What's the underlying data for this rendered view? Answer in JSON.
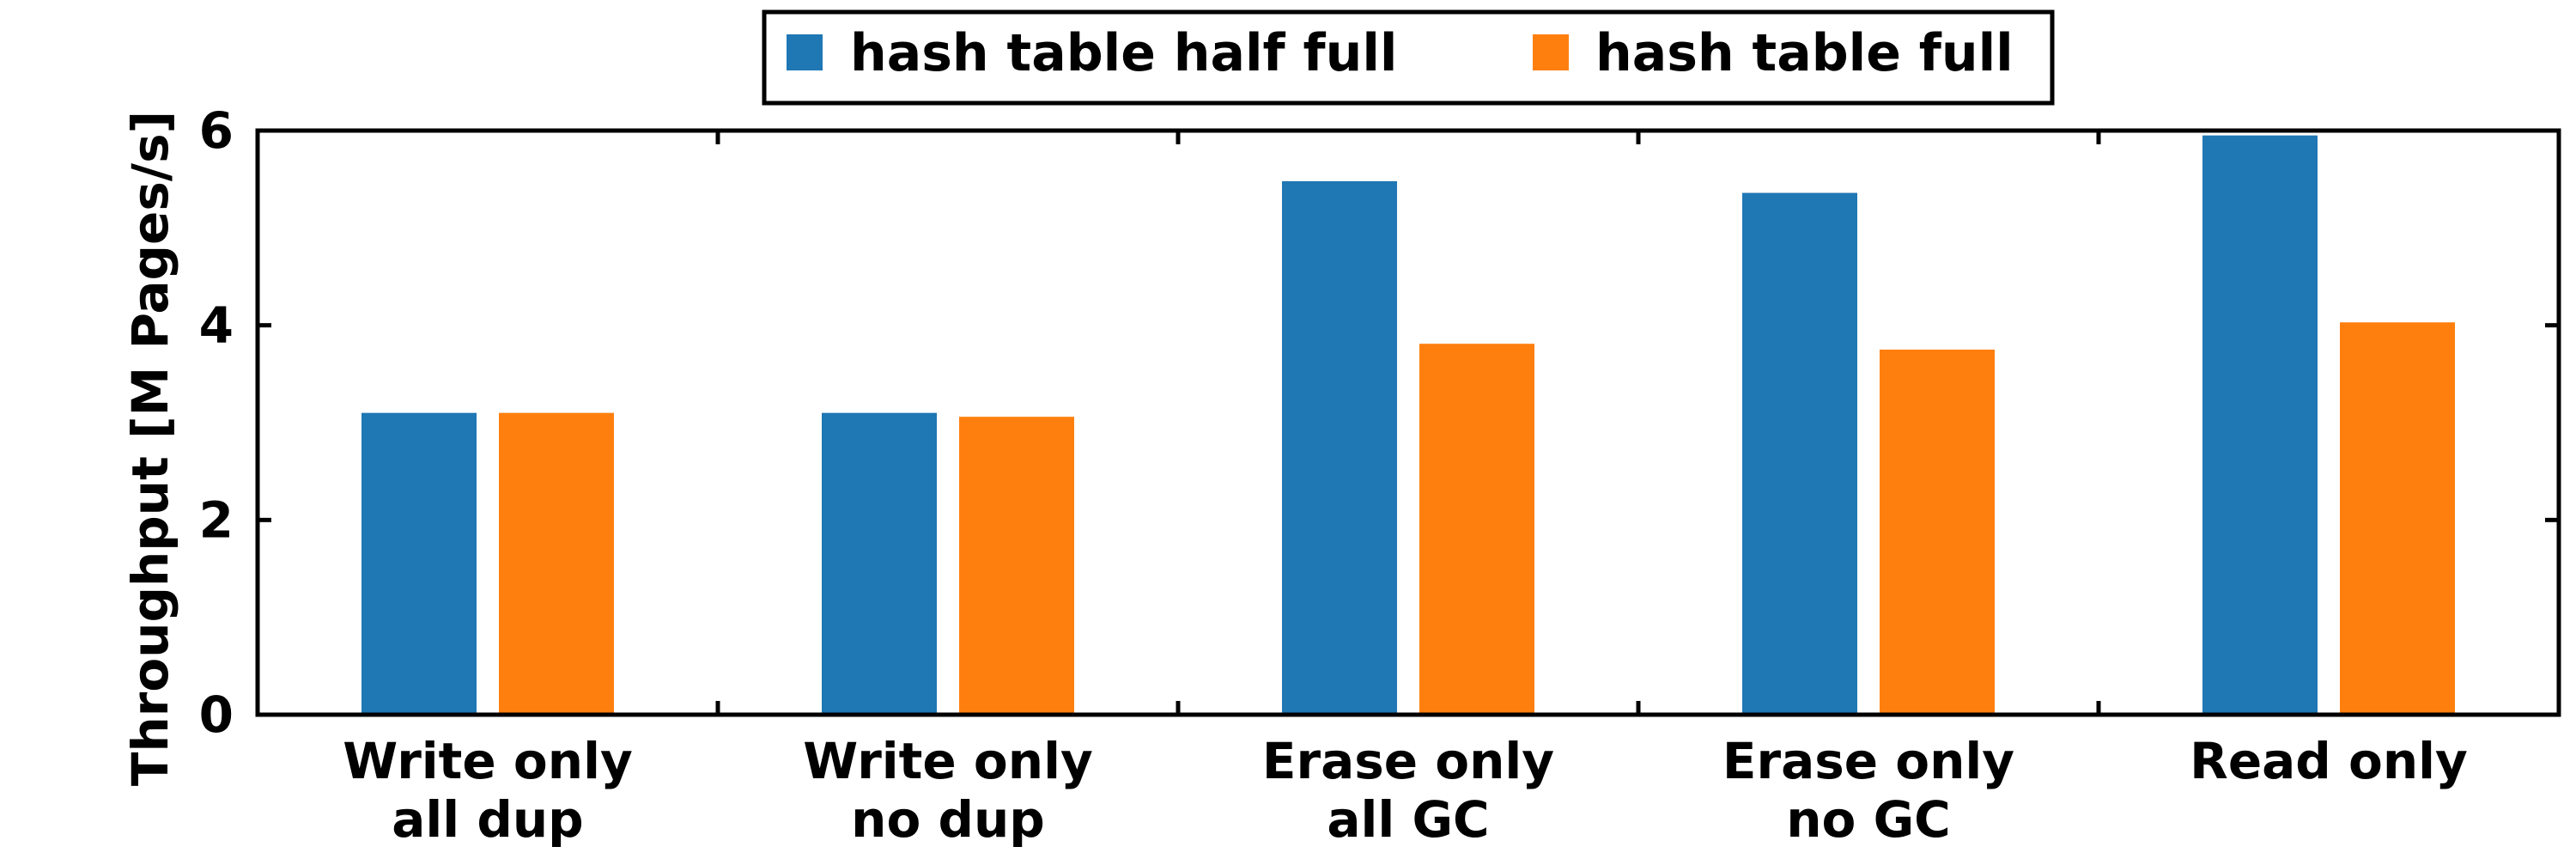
{
  "chart_data": {
    "type": "bar",
    "title": "",
    "xlabel": "",
    "ylabel": "Throughput [M Pages/s]",
    "ylim": [
      0,
      6
    ],
    "yticks": [
      0,
      2,
      4,
      6
    ],
    "grid": false,
    "legend_position": "top-center",
    "categories": [
      [
        "Write only",
        "all dup"
      ],
      [
        "Write only",
        "no dup"
      ],
      [
        "Erase only",
        "all GC"
      ],
      [
        "Erase only",
        "no GC"
      ],
      [
        "Read only"
      ]
    ],
    "series": [
      {
        "name": "hash table half full",
        "color": "#1f77b4",
        "values": [
          3.1,
          3.1,
          5.48,
          5.36,
          5.95
        ]
      },
      {
        "name": "hash table full",
        "color": "#ff7f0e",
        "values": [
          3.1,
          3.06,
          3.81,
          3.75,
          4.03
        ]
      }
    ]
  }
}
